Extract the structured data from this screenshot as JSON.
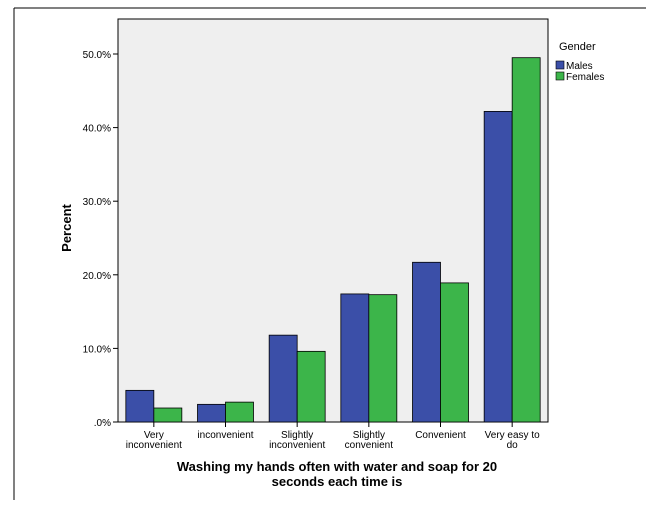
{
  "chart_data": {
    "type": "bar",
    "categories": [
      [
        "Very",
        "inconvenient"
      ],
      [
        "inconvenient"
      ],
      [
        "Slightly",
        "inconvenient"
      ],
      [
        "Slightly",
        "convenient"
      ],
      [
        "Convenient"
      ],
      [
        "Very easy to",
        "do"
      ]
    ],
    "series": [
      {
        "name": "Males",
        "color": "#3B4FA8",
        "values": [
          4.3,
          2.4,
          11.8,
          17.4,
          21.7,
          42.2
        ]
      },
      {
        "name": "Females",
        "color": "#3CB54A",
        "values": [
          1.9,
          2.7,
          9.6,
          17.3,
          18.9,
          49.5
        ]
      }
    ],
    "y_ticks": [
      ".0%",
      "10.0%",
      "20.0%",
      "30.0%",
      "40.0%",
      "50.0%"
    ],
    "ylim": [
      0,
      52
    ],
    "ylabel": "Percent",
    "xlabel": [
      "Washing my hands often with water and soap for 20",
      "seconds each time is"
    ],
    "legend": {
      "title": "Gender",
      "position": "right"
    },
    "plot_background": "#EFEFEF"
  }
}
